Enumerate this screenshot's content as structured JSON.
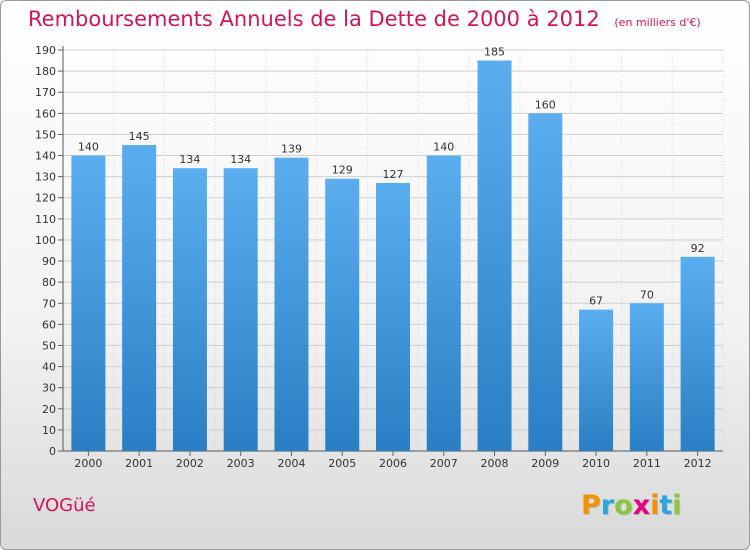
{
  "header": {
    "title": "Remboursements Annuels de la Dette de 2000 à 2012",
    "unit": "(en milliers d'€)"
  },
  "footer": {
    "commune": "VOGüé",
    "brand_letters": [
      "P",
      "r",
      "o",
      "x",
      "i",
      "t",
      "i"
    ],
    "brand_colors": [
      "#f39200",
      "#2aa6df",
      "#8cc63f",
      "#e6007e",
      "#f39200",
      "#2aa6df",
      "#8cc63f"
    ]
  },
  "colors": {
    "title": "#d4145a",
    "bar_light": "#5aaef0",
    "bar_dark": "#2a7fc4",
    "grid": "#c8c8c8"
  },
  "chart_data": {
    "type": "bar",
    "title": "Remboursements Annuels de la Dette de 2000 à 2012",
    "subtitle": "(en milliers d'€)",
    "xlabel": "",
    "ylabel": "",
    "categories": [
      "2000",
      "2001",
      "2002",
      "2003",
      "2004",
      "2005",
      "2006",
      "2007",
      "2008",
      "2009",
      "2010",
      "2011",
      "2012"
    ],
    "values": [
      140,
      145,
      134,
      134,
      139,
      129,
      127,
      140,
      185,
      160,
      67,
      70,
      92
    ],
    "ylim": [
      0,
      190
    ],
    "yticks": [
      0,
      10,
      20,
      30,
      40,
      50,
      60,
      70,
      80,
      90,
      100,
      110,
      120,
      130,
      140,
      150,
      160,
      170,
      180,
      190
    ],
    "grid": true,
    "data_labels": true
  }
}
